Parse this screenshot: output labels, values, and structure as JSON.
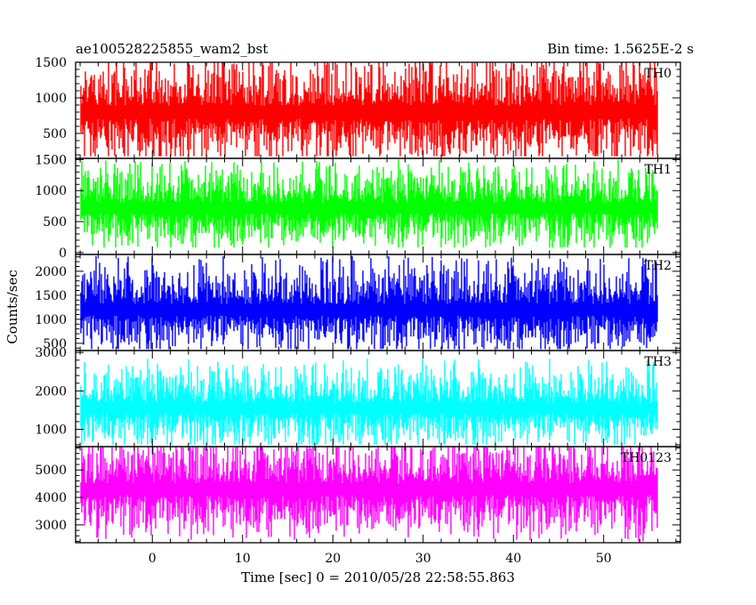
{
  "chart_data": {
    "type": "line",
    "title_left": "ae100528225855_wam2_bst",
    "title_right": "Bin time: 1.5625E-2 s",
    "xlabel": "Time [sec] 0 = 2010/05/28 22:58:55.863",
    "ylabel": "Counts/sec",
    "xlim": [
      -8.5,
      58.5
    ],
    "x_ticks": [
      0,
      10,
      20,
      30,
      40,
      50
    ],
    "x_data_range": [
      -8.0,
      56.0
    ],
    "bin_time": 0.015625,
    "panels": [
      {
        "name": "TH0",
        "color": "#ff0000",
        "ylim": [
          150,
          1500
        ],
        "y_ticks": [
          500,
          1000,
          1500
        ],
        "mean": 800,
        "spread": 260,
        "low": 180,
        "high": 1500
      },
      {
        "name": "TH1",
        "color": "#00ff00",
        "ylim": [
          -30,
          1520
        ],
        "y_ticks": [
          0,
          500,
          1000,
          1500
        ],
        "mean": 720,
        "spread": 230,
        "low": 80,
        "high": 1500
      },
      {
        "name": "TH2",
        "color": "#0000ff",
        "ylim": [
          350,
          2350
        ],
        "y_ticks": [
          500,
          1000,
          1500,
          2000
        ],
        "mean": 1200,
        "spread": 330,
        "low": 380,
        "high": 2350
      },
      {
        "name": "TH3",
        "color": "#00ffff",
        "ylim": [
          550,
          3050
        ],
        "y_ticks": [
          1000,
          2000,
          3000
        ],
        "mean": 1550,
        "spread": 380,
        "low": 600,
        "high": 3050
      },
      {
        "name": "TH0123",
        "color": "#ff00ff",
        "ylim": [
          2350,
          5850
        ],
        "y_ticks": [
          3000,
          4000,
          5000
        ],
        "mean": 4300,
        "spread": 620,
        "low": 2400,
        "high": 5850
      }
    ]
  }
}
